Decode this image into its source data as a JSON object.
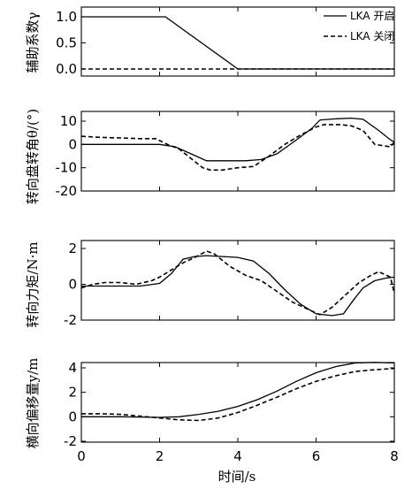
{
  "chart_data": {
    "type": "line",
    "legend": {
      "placement": "top-right",
      "entries": [
        "LKA 开启",
        "LKA 关闭"
      ]
    },
    "xlabel": "时间/s",
    "xlim": [
      0,
      8
    ],
    "xticks": [
      "0",
      "2",
      "4",
      "6",
      "8"
    ],
    "panels": [
      {
        "ylabel": "辅助系数γ",
        "ylim": [
          0,
          1.0
        ],
        "yticks": [
          "0.0",
          "0.5",
          "1.0"
        ],
        "yvals": [
          0,
          0.5,
          1.0
        ],
        "series": [
          {
            "name": "LKA 开启",
            "x": [
              0,
              2.15,
              4.0,
              8
            ],
            "y": [
              1.0,
              1.0,
              0,
              0
            ]
          },
          {
            "name": "LKA 关闭",
            "x": [
              0,
              8
            ],
            "y": [
              0,
              0
            ]
          }
        ]
      },
      {
        "ylabel": "转向盘转角θ/(°)",
        "ylim": [
          -20,
          10
        ],
        "yticks": [
          "10",
          "0",
          "-10",
          "-20"
        ],
        "yvals": [
          10,
          0,
          -10,
          -20
        ],
        "series": [
          {
            "name": "LKA 开启",
            "x": [
              0,
              1,
              2,
              2.4,
              2.8,
              3.2,
              3.8,
              4.2,
              4.6,
              5.0,
              5.5,
              5.9,
              6.1,
              6.5,
              6.9,
              7.2,
              7.6,
              7.9,
              8.0
            ],
            "y": [
              0,
              0,
              0,
              -1,
              -4,
              -7,
              -7,
              -7,
              -6.5,
              -4,
              2,
              7,
              10.5,
              11,
              11.3,
              10.8,
              6,
              2,
              1
            ]
          },
          {
            "name": "LKA 关闭",
            "x": [
              0,
              0.5,
              1,
              1.5,
              1.9,
              2.2,
              2.5,
              2.8,
              3.1,
              3.3,
              3.6,
              4.0,
              4.4,
              4.8,
              5.2,
              5.6,
              6.0,
              6.2,
              6.6,
              6.9,
              7.2,
              7.5,
              7.9,
              8.0
            ],
            "y": [
              3.5,
              3,
              2.8,
              2.5,
              2.5,
              0,
              -2,
              -6,
              -10,
              -11,
              -11,
              -10,
              -9.5,
              -5,
              0,
              4,
              7.5,
              8.5,
              8.5,
              8,
              6,
              0,
              -1,
              1
            ]
          }
        ]
      },
      {
        "ylabel": "转向力矩/N·m",
        "ylim": [
          -2,
          2
        ],
        "yticks": [
          "2",
          "0",
          "-2"
        ],
        "yvals": [
          2,
          0,
          -2
        ],
        "series": [
          {
            "name": "LKA 开启",
            "x": [
              0,
              0.5,
              1,
              1.5,
              2.0,
              2.3,
              2.6,
              2.9,
              3.2,
              3.6,
              4.0,
              4.4,
              4.8,
              5.2,
              5.6,
              6.0,
              6.4,
              6.7,
              6.95,
              7.2,
              7.5,
              7.8,
              8.0
            ],
            "y": [
              -0.1,
              -0.1,
              -0.1,
              -0.1,
              0.05,
              0.6,
              1.4,
              1.55,
              1.6,
              1.55,
              1.5,
              1.3,
              0.6,
              -0.3,
              -1.1,
              -1.65,
              -1.75,
              -1.65,
              -0.9,
              -0.2,
              0.2,
              0.35,
              0.4
            ]
          },
          {
            "name": "LKA 关闭",
            "x": [
              0,
              0.3,
              0.6,
              1,
              1.4,
              1.8,
              2.0,
              2.3,
              2.6,
              2.9,
              3.2,
              3.4,
              3.8,
              4.2,
              4.6,
              5.0,
              5.4,
              5.8,
              6.1,
              6.4,
              6.8,
              7.1,
              7.4,
              7.6,
              7.9,
              8.0
            ],
            "y": [
              -0.2,
              0,
              0.1,
              0.1,
              0,
              0.2,
              0.4,
              0.8,
              1.2,
              1.5,
              1.85,
              1.7,
              1.0,
              0.5,
              0.2,
              -0.4,
              -1.0,
              -1.4,
              -1.7,
              -1.3,
              -0.5,
              0.1,
              0.5,
              0.7,
              0.4,
              -0.5
            ]
          }
        ]
      },
      {
        "ylabel": "横向偏移量y/m",
        "ylim": [
          -2,
          4
        ],
        "yticks": [
          "4",
          "2",
          "0",
          "-2"
        ],
        "yvals": [
          4,
          2,
          0,
          -2
        ],
        "series": [
          {
            "name": "LKA 开启",
            "x": [
              0,
              1,
              2,
              2.5,
              3,
              3.5,
              4,
              4.5,
              5,
              5.5,
              6,
              6.5,
              7,
              7.5,
              8
            ],
            "y": [
              0,
              0,
              -0.05,
              0,
              0.2,
              0.45,
              0.85,
              1.4,
              2.1,
              2.9,
              3.6,
              4.1,
              4.4,
              4.45,
              4.4
            ]
          },
          {
            "name": "LKA 关闭",
            "x": [
              0,
              0.5,
              1,
              1.5,
              2,
              2.5,
              3,
              3.5,
              4,
              4.5,
              5,
              5.5,
              6,
              6.5,
              7,
              7.5,
              8
            ],
            "y": [
              0.25,
              0.25,
              0.2,
              0.05,
              -0.1,
              -0.25,
              -0.3,
              -0.1,
              0.35,
              0.95,
              1.6,
              2.3,
              2.9,
              3.35,
              3.7,
              3.85,
              3.95
            ]
          }
        ]
      }
    ]
  }
}
